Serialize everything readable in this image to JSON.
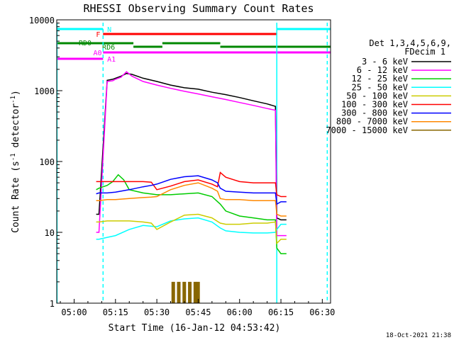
{
  "chart_data": {
    "type": "line",
    "title": "RHESSI Observing Summary Count Rates",
    "xlabel": "Start Time (16-Jan-12 04:53:42)",
    "ylabel_main": "Count Rate (s",
    "ylabel_sup1": "-1",
    "ylabel_mid": " detector",
    "ylabel_sup2": "-1",
    "ylabel_end": ")",
    "yscale": "log",
    "ylim": [
      1,
      10000
    ],
    "xlim_minutes": [
      -6.3,
      93.0
    ],
    "x_ticks": [
      {
        "m": 0,
        "label": "05:00"
      },
      {
        "m": 15,
        "label": "05:15"
      },
      {
        "m": 30,
        "label": "05:30"
      },
      {
        "m": 45,
        "label": "05:45"
      },
      {
        "m": 60,
        "label": "06:00"
      },
      {
        "m": 75,
        "label": "06:15"
      },
      {
        "m": 90,
        "label": "06:30"
      }
    ],
    "y_ticks": [
      {
        "v": 1,
        "label": "1"
      },
      {
        "v": 10,
        "label": "10"
      },
      {
        "v": 100,
        "label": "100"
      },
      {
        "v": 1000,
        "label": "1000"
      },
      {
        "v": 10000,
        "label": "10000"
      }
    ],
    "legend_header": [
      "Det 1,3,4,5,6,9,",
      "FDecim 1"
    ],
    "series": [
      {
        "name": "3 - 6 keV",
        "color": "#000000",
        "points": [
          [
            8,
            18
          ],
          [
            9,
            18
          ],
          [
            12,
            1400
          ],
          [
            14,
            1450
          ],
          [
            15,
            1500
          ],
          [
            17,
            1600
          ],
          [
            19,
            1750
          ],
          [
            21,
            1700
          ],
          [
            25,
            1500
          ],
          [
            30,
            1350
          ],
          [
            35,
            1200
          ],
          [
            40,
            1100
          ],
          [
            45,
            1050
          ],
          [
            50,
            950
          ],
          [
            55,
            880
          ],
          [
            60,
            800
          ],
          [
            65,
            720
          ],
          [
            70,
            650
          ],
          [
            73,
            600
          ],
          [
            73.5,
            16
          ],
          [
            75,
            15
          ],
          [
            77,
            15
          ]
        ]
      },
      {
        "name": "6 - 12 keV",
        "color": "#ff00ff",
        "points": [
          [
            8,
            10
          ],
          [
            9,
            10
          ],
          [
            12,
            1350
          ],
          [
            14,
            1380
          ],
          [
            15,
            1450
          ],
          [
            17,
            1550
          ],
          [
            19,
            1850
          ],
          [
            21,
            1600
          ],
          [
            25,
            1350
          ],
          [
            30,
            1200
          ],
          [
            35,
            1080
          ],
          [
            40,
            980
          ],
          [
            45,
            900
          ],
          [
            50,
            820
          ],
          [
            55,
            750
          ],
          [
            60,
            680
          ],
          [
            65,
            620
          ],
          [
            70,
            560
          ],
          [
            73,
            530
          ],
          [
            73.5,
            9
          ],
          [
            75,
            9
          ],
          [
            77,
            9
          ]
        ]
      },
      {
        "name": "12 - 25 keV",
        "color": "#00cc00",
        "points": [
          [
            8,
            40
          ],
          [
            9,
            42
          ],
          [
            12,
            46
          ],
          [
            14,
            52
          ],
          [
            16,
            65
          ],
          [
            18,
            55
          ],
          [
            20,
            40
          ],
          [
            25,
            36
          ],
          [
            30,
            34
          ],
          [
            35,
            34
          ],
          [
            40,
            35
          ],
          [
            45,
            36
          ],
          [
            50,
            32
          ],
          [
            53,
            25
          ],
          [
            55,
            20
          ],
          [
            60,
            17
          ],
          [
            65,
            16
          ],
          [
            70,
            15
          ],
          [
            73,
            15
          ],
          [
            73.5,
            6
          ],
          [
            75,
            5
          ],
          [
            77,
            5
          ]
        ]
      },
      {
        "name": "25 - 50 keV",
        "color": "#00ffff",
        "points": [
          [
            8,
            8
          ],
          [
            9,
            8
          ],
          [
            12,
            8.5
          ],
          [
            15,
            9
          ],
          [
            20,
            11
          ],
          [
            25,
            12.5
          ],
          [
            30,
            12
          ],
          [
            35,
            14.5
          ],
          [
            40,
            15.5
          ],
          [
            45,
            16
          ],
          [
            50,
            14
          ],
          [
            53,
            11.5
          ],
          [
            55,
            10.5
          ],
          [
            60,
            10
          ],
          [
            65,
            9.8
          ],
          [
            70,
            9.8
          ],
          [
            73,
            10
          ],
          [
            73.5,
            11
          ],
          [
            75,
            13
          ],
          [
            77,
            13
          ]
        ]
      },
      {
        "name": "50 - 100 keV",
        "color": "#cccc00",
        "points": [
          [
            8,
            14
          ],
          [
            9,
            14
          ],
          [
            12,
            14.5
          ],
          [
            15,
            14.5
          ],
          [
            20,
            14.5
          ],
          [
            25,
            14
          ],
          [
            28,
            13.5
          ],
          [
            30,
            11
          ],
          [
            35,
            14
          ],
          [
            40,
            17.5
          ],
          [
            45,
            18
          ],
          [
            50,
            16
          ],
          [
            53,
            13.5
          ],
          [
            55,
            13
          ],
          [
            60,
            13
          ],
          [
            65,
            13.5
          ],
          [
            70,
            13.5
          ],
          [
            73,
            14
          ],
          [
            73.5,
            7
          ],
          [
            75,
            8
          ],
          [
            77,
            8
          ]
        ]
      },
      {
        "name": "100 - 300 keV",
        "color": "#ff0000",
        "points": [
          [
            8,
            52
          ],
          [
            9,
            52
          ],
          [
            12,
            52
          ],
          [
            15,
            52
          ],
          [
            20,
            52
          ],
          [
            25,
            52
          ],
          [
            28,
            51
          ],
          [
            30,
            40
          ],
          [
            35,
            45
          ],
          [
            40,
            52
          ],
          [
            45,
            55
          ],
          [
            50,
            48
          ],
          [
            52,
            44
          ],
          [
            53,
            70
          ],
          [
            55,
            60
          ],
          [
            60,
            52
          ],
          [
            65,
            50
          ],
          [
            70,
            50
          ],
          [
            73,
            50
          ],
          [
            73.5,
            34
          ],
          [
            75,
            32
          ],
          [
            77,
            32
          ]
        ]
      },
      {
        "name": "300 - 800 keV",
        "color": "#0000ff",
        "points": [
          [
            8,
            35
          ],
          [
            9,
            36
          ],
          [
            12,
            36
          ],
          [
            15,
            37
          ],
          [
            20,
            40
          ],
          [
            25,
            44
          ],
          [
            28,
            46
          ],
          [
            30,
            48
          ],
          [
            35,
            56
          ],
          [
            40,
            61
          ],
          [
            45,
            63
          ],
          [
            50,
            55
          ],
          [
            52,
            50
          ],
          [
            53,
            42
          ],
          [
            55,
            38
          ],
          [
            60,
            37
          ],
          [
            65,
            36
          ],
          [
            70,
            36
          ],
          [
            73,
            36
          ],
          [
            73.5,
            25
          ],
          [
            75,
            27
          ],
          [
            77,
            27
          ]
        ]
      },
      {
        "name": "800 - 7000 keV",
        "color": "#ff8800",
        "points": [
          [
            8,
            28
          ],
          [
            9,
            28
          ],
          [
            12,
            29
          ],
          [
            15,
            29
          ],
          [
            20,
            30
          ],
          [
            25,
            31
          ],
          [
            28,
            31.5
          ],
          [
            30,
            32
          ],
          [
            35,
            40
          ],
          [
            40,
            46
          ],
          [
            45,
            50
          ],
          [
            50,
            42
          ],
          [
            52,
            38
          ],
          [
            53,
            30
          ],
          [
            55,
            29
          ],
          [
            60,
            29
          ],
          [
            65,
            28
          ],
          [
            70,
            28
          ],
          [
            73,
            28
          ],
          [
            73.5,
            18
          ],
          [
            75,
            17
          ],
          [
            77,
            17
          ]
        ]
      },
      {
        "name": "7000 - 15000 keV",
        "color": "#886600",
        "points": [
          [
            8,
            1
          ],
          [
            24,
            1
          ],
          [
            26,
            1
          ],
          [
            35,
            1
          ],
          [
            36,
            2
          ],
          [
            38,
            2
          ],
          [
            40,
            2
          ],
          [
            42,
            2
          ],
          [
            44,
            2
          ],
          [
            45,
            2
          ],
          [
            46,
            1
          ],
          [
            60,
            1
          ],
          [
            77,
            1
          ]
        ]
      }
    ],
    "state_bars": [
      {
        "label": "N",
        "color": "#00ffff",
        "segments": [
          [
            -6.3,
            10.5
          ],
          [
            73.5,
            93.0
          ]
        ]
      },
      {
        "label": "F",
        "color": "#ff0000",
        "segments": [
          [
            10.5,
            73.5
          ]
        ]
      },
      {
        "label": "RD0",
        "color": "#008800",
        "segments": [
          [
            -6.3,
            21.5
          ],
          [
            32,
            53
          ]
        ]
      },
      {
        "label": "RD6",
        "color": "#008800",
        "segments": [
          [
            21.5,
            32
          ],
          [
            53,
            73.5
          ],
          [
            73.5,
            93.0
          ]
        ]
      },
      {
        "label": "A0",
        "color": "#ff00ff",
        "segments": [
          [
            10.5,
            93.0
          ]
        ]
      },
      {
        "label": "A1",
        "color": "#ff00ff",
        "segments": [
          [
            -6.3,
            10.5
          ]
        ]
      }
    ],
    "vertical_lines": [
      {
        "m": -6.2,
        "color": "#00ffff",
        "style": "solid"
      },
      {
        "m": 10.5,
        "color": "#00ffff",
        "style": "dashed"
      },
      {
        "m": 73.5,
        "color": "#00ffff",
        "style": "solid"
      },
      {
        "m": 91.8,
        "color": "#00ffff",
        "style": "dashed"
      }
    ],
    "footer_date": "18-Oct-2021 21:38"
  }
}
